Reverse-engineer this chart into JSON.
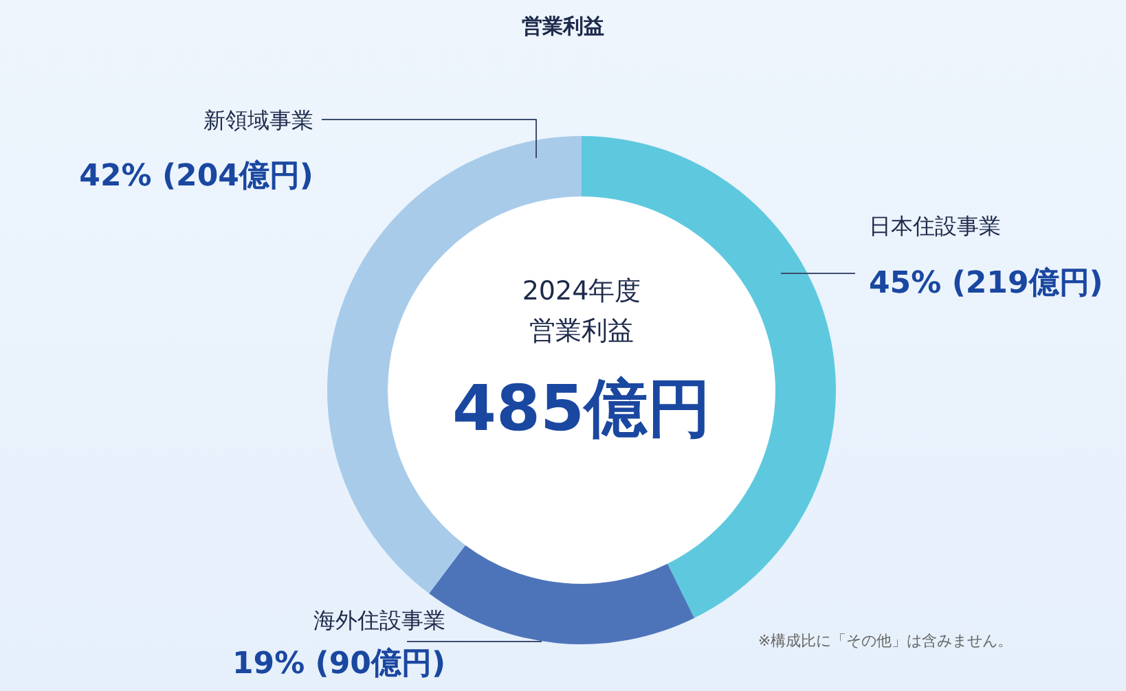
{
  "chart_data": {
    "type": "donut",
    "title": "営業利益",
    "categories": [
      "日本住設事業",
      "海外住設事業",
      "新領域事業"
    ],
    "values": [
      219,
      90,
      204
    ],
    "colors": [
      "#5ec9de",
      "#4d74b9",
      "#a8cbea"
    ],
    "value_labels": [
      "45% (219億円)",
      "19% (90億円)",
      "42% (204億円)"
    ],
    "annotations": [
      "2024年度",
      "営業利益",
      "485億円",
      "※構成比に「その他」は含みません。"
    ]
  }
}
